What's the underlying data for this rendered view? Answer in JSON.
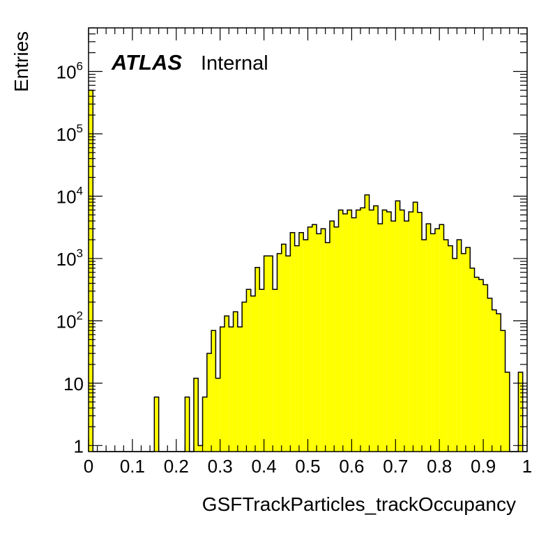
{
  "chart_data": {
    "type": "bar",
    "title": "",
    "xlabel": "GSFTrackParticles_trackOccupancy",
    "ylabel": "Entries",
    "xlim": [
      0,
      1
    ],
    "ylim": [
      0.8,
      5000000
    ],
    "log_y": true,
    "bins": 100,
    "bin_width": 0.01,
    "fill_color": "#ffff00",
    "line_color": "#000000",
    "x_ticks": [
      "0",
      "0.1",
      "0.2",
      "0.3",
      "0.4",
      "0.5",
      "0.6",
      "0.7",
      "0.8",
      "0.9",
      "1"
    ],
    "x_tick_values": [
      0,
      0.1,
      0.2,
      0.3,
      0.4,
      0.5,
      0.6,
      0.7,
      0.8,
      0.9,
      1.0
    ],
    "y_ticks": [
      {
        "value": 1,
        "base": "1",
        "exp": ""
      },
      {
        "value": 10,
        "base": "10",
        "exp": ""
      },
      {
        "value": 100,
        "base": "10",
        "exp": "2"
      },
      {
        "value": 1000,
        "base": "10",
        "exp": "3"
      },
      {
        "value": 10000,
        "base": "10",
        "exp": "4"
      },
      {
        "value": 100000,
        "base": "10",
        "exp": "5"
      },
      {
        "value": 1000000,
        "base": "10",
        "exp": "6"
      }
    ],
    "values": [
      500000,
      0,
      0,
      0,
      0,
      0,
      0,
      0,
      0,
      0,
      0,
      0,
      0,
      0,
      0,
      6,
      0,
      0,
      0,
      0,
      0,
      0,
      6,
      0,
      12,
      1,
      6,
      30,
      70,
      12,
      80,
      120,
      80,
      140,
      80,
      200,
      320,
      250,
      720,
      320,
      1100,
      1100,
      320,
      1200,
      1700,
      1100,
      2600,
      1600,
      2600,
      2000,
      3200,
      3500,
      2500,
      3000,
      1800,
      4000,
      3200,
      6000,
      5200,
      6000,
      4500,
      6000,
      6500,
      10500,
      6000,
      7000,
      3600,
      6000,
      5600,
      4000,
      8400,
      6000,
      4000,
      5600,
      8000,
      5500,
      2000,
      3600,
      2500,
      3000,
      3500,
      2000,
      1600,
      1000,
      2000,
      1200,
      1500,
      700,
      500,
      460,
      380,
      230,
      150,
      130,
      70,
      15,
      0,
      0,
      15,
      0
    ],
    "annotations": {
      "experiment": "ATLAS",
      "status": "Internal"
    }
  }
}
